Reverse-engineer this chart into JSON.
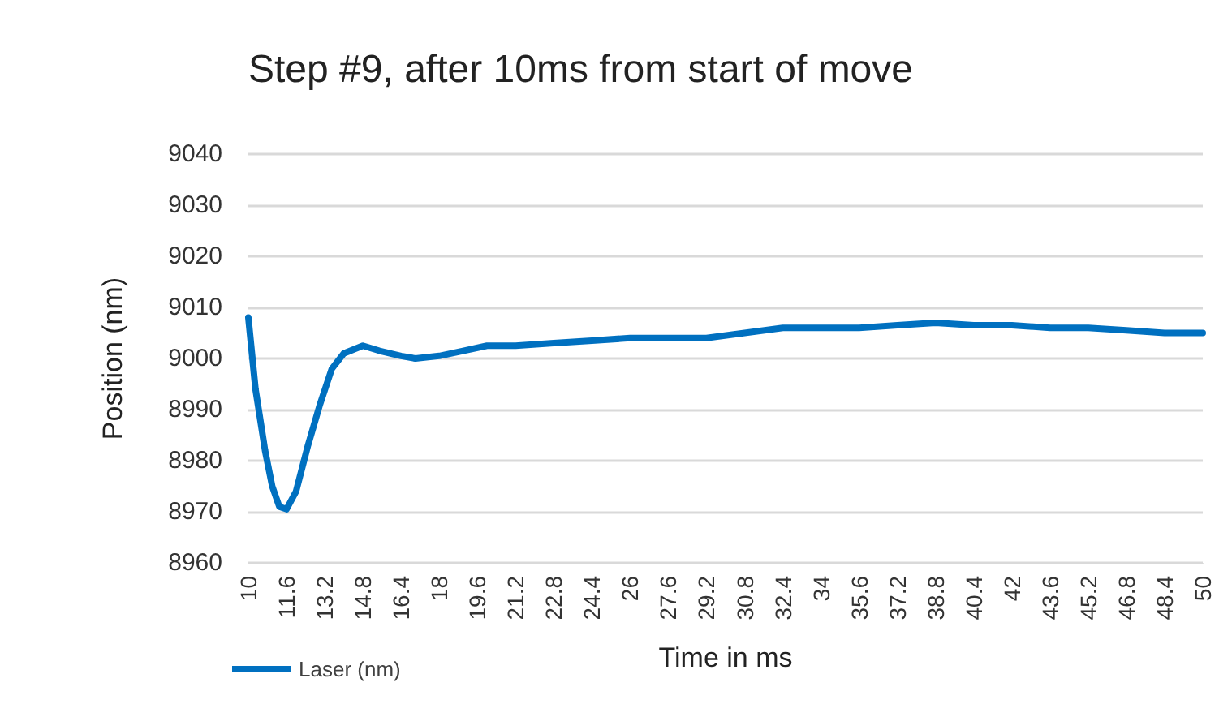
{
  "chart_data": {
    "type": "line",
    "title": "Step #9, after 10ms from start of move",
    "xlabel": "Time in ms",
    "ylabel": "Position (nm)",
    "x": [
      10,
      10.3,
      10.7,
      11,
      11.3,
      11.6,
      12,
      12.5,
      13,
      13.5,
      14,
      14.8,
      15.5,
      16.4,
      17,
      18,
      19,
      20,
      21.2,
      22.8,
      24.4,
      26,
      28,
      29.2,
      30.8,
      32.4,
      34,
      35.6,
      37.2,
      38.8,
      40.4,
      42,
      43.6,
      45.2,
      46.8,
      48.4,
      50
    ],
    "series": [
      {
        "name": "Laser (nm)",
        "color": "#0070c0",
        "values": [
          9008,
          8994,
          8982,
          8975,
          8971,
          8970.5,
          8974,
          8983,
          8991,
          8998,
          9001,
          9002.5,
          9001.5,
          9000.5,
          9000,
          9000.5,
          9001.5,
          9002.5,
          9002.5,
          9003,
          9003.5,
          9004,
          9004,
          9004,
          9005,
          9006,
          9006,
          9006,
          9006.5,
          9007,
          9006.5,
          9006.5,
          9006,
          9006,
          9005.5,
          9005,
          9005
        ]
      }
    ],
    "xlim": [
      10,
      50
    ],
    "xticks": [
      10,
      11.6,
      13.2,
      14.8,
      16.4,
      18,
      19.6,
      21.2,
      22.8,
      24.4,
      26,
      27.6,
      29.2,
      30.8,
      32.4,
      34,
      35.6,
      37.2,
      38.8,
      40.4,
      42,
      43.6,
      45.2,
      46.8,
      48.4,
      50
    ],
    "ylim": [
      8960,
      9040
    ],
    "yticks": [
      8960,
      8970,
      8980,
      8990,
      9000,
      9010,
      9020,
      9030,
      9040
    ],
    "grid": "y",
    "legend": "bottom left",
    "marker": "none",
    "line_style": "solid"
  }
}
